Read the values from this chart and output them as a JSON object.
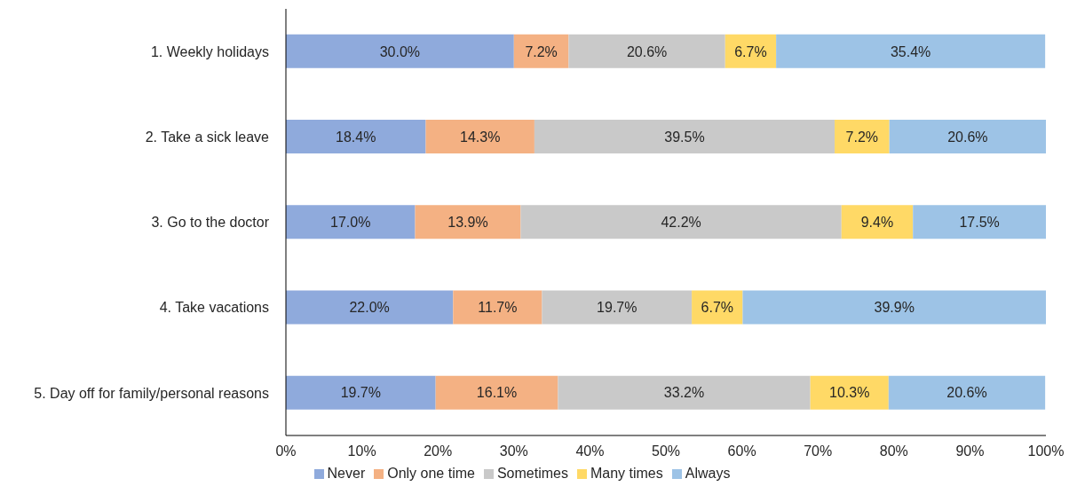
{
  "chart_data": {
    "type": "bar",
    "orientation": "horizontal",
    "stacked": true,
    "legend": "bottom",
    "categories": [
      "1. Weekly holidays",
      "2. Take a sick leave",
      "3. Go to the doctor",
      "4. Take vacations",
      "5. Day off for family/personal reasons"
    ],
    "xlim": [
      0,
      100
    ],
    "xticks": [
      {
        "value": 0,
        "label": "0%"
      },
      {
        "value": 10,
        "label": "10%"
      },
      {
        "value": 20,
        "label": "20%"
      },
      {
        "value": 30,
        "label": "30%"
      },
      {
        "value": 40,
        "label": "40%"
      },
      {
        "value": 50,
        "label": "50%"
      },
      {
        "value": 60,
        "label": "60%"
      },
      {
        "value": 70,
        "label": "70%"
      },
      {
        "value": 80,
        "label": "80%"
      },
      {
        "value": 90,
        "label": "90%"
      },
      {
        "value": 100,
        "label": "100%"
      }
    ],
    "series": [
      {
        "name": "Never",
        "color": "#8faadc",
        "values": [
          30.0,
          18.4,
          17.0,
          22.0,
          19.7
        ],
        "value_labels": [
          "30.0%",
          "18.4%",
          "17.0%",
          "22.0%",
          "19.7%"
        ]
      },
      {
        "name": "Only one time",
        "color": "#f4b183",
        "values": [
          7.2,
          14.3,
          13.9,
          11.7,
          16.1
        ],
        "value_labels": [
          "7.2%",
          "14.3%",
          "13.9%",
          "11.7%",
          "16.1%"
        ]
      },
      {
        "name": "Sometimes",
        "color": "#c9c9c9",
        "values": [
          20.6,
          39.5,
          42.2,
          19.7,
          33.2
        ],
        "value_labels": [
          "20.6%",
          "39.5%",
          "42.2%",
          "19.7%",
          "33.2%"
        ]
      },
      {
        "name": "Many times",
        "color": "#ffd966",
        "values": [
          6.7,
          7.2,
          9.4,
          6.7,
          10.3
        ],
        "value_labels": [
          "6.7%",
          "7.2%",
          "9.4%",
          "6.7%",
          "10.3%"
        ]
      },
      {
        "name": "Always",
        "color": "#9dc3e6",
        "values": [
          35.4,
          20.6,
          17.5,
          39.9,
          20.6
        ],
        "value_labels": [
          "35.4%",
          "20.6%",
          "17.5%",
          "39.9%",
          "20.6%"
        ]
      }
    ]
  }
}
